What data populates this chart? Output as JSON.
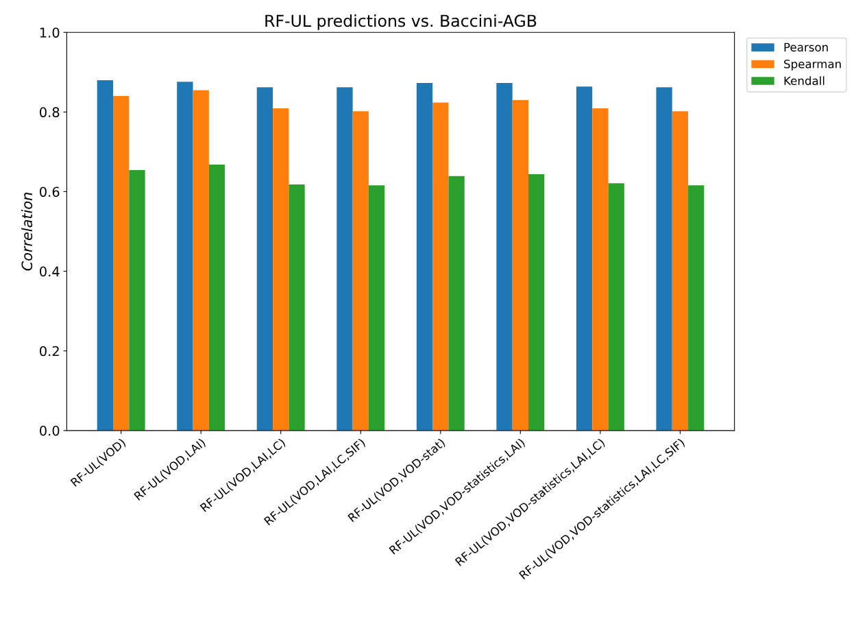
{
  "chart_data": {
    "type": "bar",
    "title": "RF-UL predictions vs. Baccini-AGB",
    "ylabel": "Correlation",
    "categories": [
      "RF-UL(VOD)",
      "RF-UL(VOD,LAI)",
      "RF-UL(VOD,LAI,LC)",
      "RF-UL(VOD,LAI,LC,SIF)",
      "RF-UL(VOD,VOD-stat)",
      "RF-UL(VOD,VOD-statistics,LAI)",
      "RF-UL(VOD,VOD-statistics,LAI,LC)",
      "RF-UL(VOD,VOD-statistics,LAI,LC,SIF)"
    ],
    "series": [
      {
        "name": "Pearson",
        "color": "#1f77b4",
        "values": [
          0.88,
          0.876,
          0.862,
          0.862,
          0.873,
          0.873,
          0.864,
          0.862
        ]
      },
      {
        "name": "Spearman",
        "color": "#ff7f0e",
        "values": [
          0.84,
          0.855,
          0.809,
          0.802,
          0.824,
          0.83,
          0.809,
          0.802
        ]
      },
      {
        "name": "Kendall",
        "color": "#2ca02c",
        "values": [
          0.654,
          0.668,
          0.618,
          0.616,
          0.639,
          0.644,
          0.621,
          0.616
        ]
      }
    ],
    "ylim": [
      0,
      1.0
    ],
    "yticks": [
      {
        "value": 0,
        "label": "0.0"
      },
      0.2,
      0.4,
      0.6,
      0.8,
      {
        "value": 1.0,
        "label": "1.0"
      }
    ],
    "grid": false,
    "legend": "top right"
  }
}
